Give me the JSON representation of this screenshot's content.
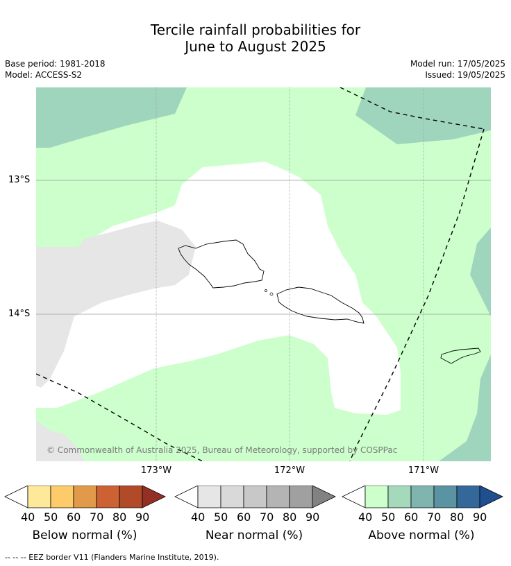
{
  "title": {
    "line1": "Tercile rainfall probabilities for",
    "line2": "June to August 2025"
  },
  "meta": {
    "base_period": "Base period: 1981-2018",
    "model": "Model: ACCESS-S2",
    "model_run": "Model run: 17/05/2025",
    "issued": "Issued: 19/05/2025"
  },
  "axes": {
    "lat_labels": [
      "13°S",
      "14°S"
    ],
    "lon_labels": [
      "173°W",
      "172°W",
      "171°W"
    ]
  },
  "copyright": "© Commonwealth of Australia 2025, Bureau of Meteorology, supported by COSPPac",
  "colorbars": [
    {
      "title": "Below normal (%)",
      "ticks": [
        "40",
        "50",
        "60",
        "70",
        "80",
        "90"
      ],
      "colors": [
        "#ffffff",
        "#fee99b",
        "#fdcb69",
        "#e19a4a",
        "#cc6133",
        "#b04a29",
        "#943023"
      ]
    },
    {
      "title": "Near normal (%)",
      "ticks": [
        "40",
        "50",
        "60",
        "70",
        "80",
        "90"
      ],
      "colors": [
        "#ffffff",
        "#e6e6e6",
        "#d9d9d9",
        "#c8c8c8",
        "#b4b4b4",
        "#a0a0a0",
        "#828282"
      ]
    },
    {
      "title": "Above normal (%)",
      "ticks": [
        "40",
        "50",
        "60",
        "70",
        "80",
        "90"
      ],
      "colors": [
        "#ffffff",
        "#ccffcc",
        "#a5d9bc",
        "#7fb5ae",
        "#5a94a3",
        "#35689a",
        "#204f8e"
      ]
    }
  ],
  "legend_note": "--  --  -- EEZ border V11 (Flanders Marine Institute, 2019).",
  "colors": {
    "above_40_50": "#ccffcc",
    "above_50_60": "#a0d5bd",
    "near_40_50": "#e6e6e6",
    "neutral": "#ffffff"
  }
}
